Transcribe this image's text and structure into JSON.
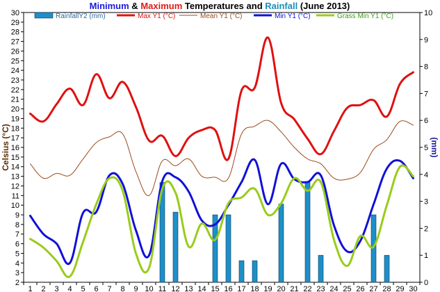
{
  "chart_data": {
    "type": "line",
    "title": {
      "parts": [
        {
          "text": "Minimum",
          "color": "#1a1adb"
        },
        {
          "text": " & ",
          "color": "#000000"
        },
        {
          "text": "Maximum",
          "color": "#e01818"
        },
        {
          "text": " Temperatures and ",
          "color": "#000000"
        },
        {
          "text": "Rainfall",
          "color": "#1a8fb8"
        },
        {
          "text": " (June 2013)",
          "color": "#000000"
        }
      ]
    },
    "ylabel_left": "Celsius (°C)",
    "ylabel_right": "(mm)",
    "xlabel": "",
    "x": [
      1,
      2,
      3,
      4,
      5,
      6,
      7,
      8,
      9,
      10,
      11,
      12,
      13,
      14,
      15,
      16,
      17,
      18,
      19,
      20,
      21,
      22,
      23,
      24,
      25,
      26,
      27,
      28,
      29,
      30
    ],
    "x_ticks": [
      "1",
      "2",
      "3",
      "4",
      "5",
      "6",
      "7",
      "8",
      "9",
      "10",
      "11",
      "12",
      "13",
      "14",
      "15",
      "16",
      "17",
      "18",
      "19",
      "20",
      "21",
      "22",
      "23",
      "24",
      "25",
      "26",
      "27",
      "28",
      "29",
      "30"
    ],
    "ylim_left": [
      2,
      30
    ],
    "y_ticks_left": [
      "2",
      "3",
      "4",
      "5",
      "6",
      "7",
      "8",
      "9",
      "10",
      "11",
      "12",
      "13",
      "14",
      "15",
      "16",
      "17",
      "18",
      "19",
      "20",
      "21",
      "22",
      "23",
      "24",
      "25",
      "26",
      "27",
      "28",
      "29",
      "30"
    ],
    "ylim_right": [
      0,
      10
    ],
    "y_ticks_right": [
      "0",
      "1",
      "2",
      "3",
      "4",
      "5",
      "6",
      "7",
      "8",
      "9",
      "10"
    ],
    "grid": false,
    "legend_position": "top",
    "series": [
      {
        "name": "RainfallY2 (mm)",
        "kind": "bar",
        "axis": "right",
        "color": "#1e8fc8",
        "values": [
          0,
          0,
          0,
          0,
          0,
          0,
          0,
          0,
          0,
          0,
          3.7,
          2.6,
          0,
          0,
          2.5,
          2.5,
          0.8,
          0.8,
          0,
          2.9,
          0,
          3.7,
          1.0,
          0,
          0,
          0,
          2.5,
          1.0,
          0,
          0
        ]
      },
      {
        "name": "Max Y1 (°C)",
        "kind": "line",
        "axis": "left",
        "color": "#e01010",
        "width": 3,
        "values": [
          19.5,
          18.7,
          20.5,
          22.1,
          20.4,
          23.6,
          21.1,
          22.8,
          20.2,
          16.7,
          17.2,
          15.1,
          17.0,
          17.8,
          17.8,
          14.8,
          21.9,
          22.2,
          27.4,
          20.6,
          18.9,
          16.9,
          15.3,
          17.7,
          20.1,
          20.4,
          20.9,
          19.2,
          22.6,
          23.8
        ]
      },
      {
        "name": "Mean Y1 (°C)",
        "kind": "line",
        "axis": "left",
        "color": "#9a4a1c",
        "width": 1,
        "values": [
          14.3,
          12.8,
          13.3,
          13.1,
          14.8,
          16.5,
          17.1,
          17.4,
          13.5,
          11.0,
          14.6,
          14.1,
          14.8,
          13.0,
          12.9,
          12.8,
          17.4,
          18.2,
          18.8,
          17.6,
          16.0,
          14.8,
          14.3,
          12.8,
          12.7,
          13.4,
          15.8,
          16.8,
          18.7,
          18.3
        ]
      },
      {
        "name": "Min Y1 (°C)",
        "kind": "line",
        "axis": "left",
        "color": "#1010d8",
        "width": 3,
        "values": [
          8.9,
          7.0,
          6.0,
          4.0,
          9.2,
          9.3,
          13.1,
          12.2,
          7.4,
          4.8,
          12.5,
          12.9,
          11.4,
          8.4,
          8.0,
          10.0,
          12.4,
          14.7,
          10.1,
          14.3,
          12.7,
          12.4,
          13.1,
          7.9,
          5.2,
          6.3,
          10.1,
          13.8,
          14.6,
          12.8
        ]
      },
      {
        "name": "Grass Min Y1 (°C)",
        "kind": "line",
        "axis": "left",
        "color": "#99cc1a",
        "width": 3,
        "values": [
          6.5,
          5.6,
          4.2,
          2.6,
          6.2,
          10.1,
          12.8,
          11.5,
          5.0,
          3.5,
          11.7,
          11.3,
          5.7,
          8.1,
          6.4,
          10.2,
          10.8,
          11.7,
          9.0,
          10.2,
          12.8,
          11.5,
          12.4,
          6.4,
          3.7,
          6.8,
          5.7,
          10.0,
          14.0,
          13.0
        ]
      }
    ]
  }
}
